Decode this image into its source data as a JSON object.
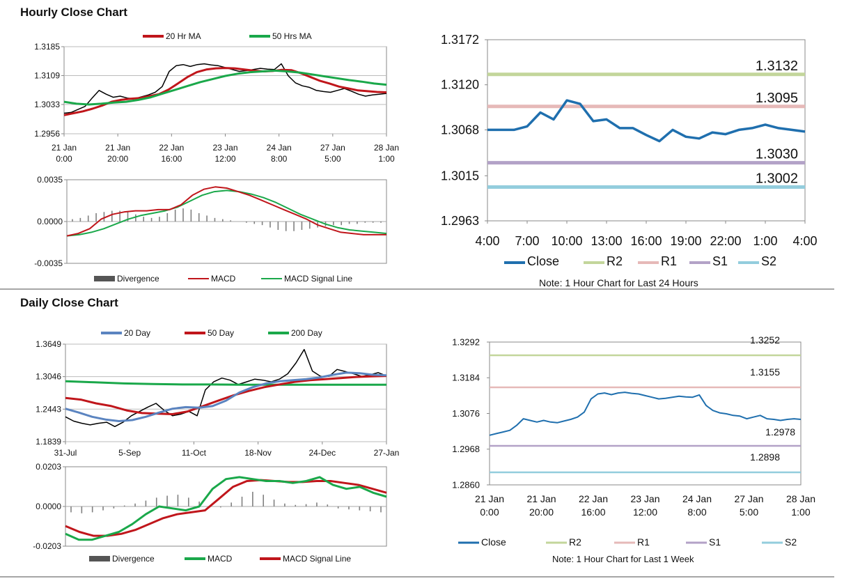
{
  "titles": {
    "hourly": "Hourly Close Chart",
    "daily": "Daily Close Chart"
  },
  "notes": {
    "hourly": "Note: 1 Hour Chart for Last 24 Hours",
    "daily": "Note: 1 Hour Chart for Last 1 Week"
  },
  "colors": {
    "price": "#000000",
    "ma_short": "#c0161b",
    "ma_long": "#1aa84a",
    "ma_20day": "#5b84c0",
    "ma_200": "#1aa84a",
    "close": "#1f6fae",
    "r2": "#c3d69b",
    "r1": "#e6b9b8",
    "s1": "#b3a2c7",
    "s2": "#93cddd",
    "divergence": "#808080"
  },
  "chart_data": [
    {
      "id": "hourly_price",
      "type": "line",
      "title": "",
      "legend": [
        "20 Hr MA",
        "50 Hrs MA"
      ],
      "y_ticks": [
        "1.3185",
        "1.3109",
        "1.3033",
        "1.2956"
      ],
      "ylim": [
        1.2956,
        1.3185
      ],
      "x_ticks": [
        [
          "21 Jan",
          "0:00"
        ],
        [
          "21 Jan",
          "20:00"
        ],
        [
          "22 Jan",
          "16:00"
        ],
        [
          "23 Jan",
          "12:00"
        ],
        [
          "24 Jan",
          "8:00"
        ],
        [
          "27 Jan",
          "5:00"
        ],
        [
          "28 Jan",
          "1:00"
        ]
      ],
      "series": [
        {
          "name": "Price",
          "values": [
            1.301,
            1.3012,
            1.302,
            1.3028,
            1.305,
            1.307,
            1.306,
            1.3052,
            1.3055,
            1.305,
            1.3048,
            1.3053,
            1.3058,
            1.3065,
            1.308,
            1.312,
            1.3135,
            1.3138,
            1.3133,
            1.3138,
            1.314,
            1.3137,
            1.3135,
            1.313,
            1.3125,
            1.312,
            1.3122,
            1.3125,
            1.3128,
            1.3126,
            1.3125,
            1.314,
            1.3108,
            1.309,
            1.3082,
            1.3078,
            1.307,
            1.3067,
            1.3065,
            1.307,
            1.3075,
            1.3068,
            1.306,
            1.3055,
            1.3058,
            1.306,
            1.3062
          ]
        },
        {
          "name": "20 Hr MA",
          "values": [
            1.3005,
            1.301,
            1.3015,
            1.3022,
            1.303,
            1.304,
            1.3045,
            1.3048,
            1.305,
            1.3055,
            1.306,
            1.3072,
            1.3088,
            1.3105,
            1.3118,
            1.3125,
            1.3128,
            1.3129,
            1.3128,
            1.3125,
            1.3122,
            1.312,
            1.3121,
            1.3124,
            1.3123,
            1.3115,
            1.3105,
            1.3095,
            1.3088,
            1.308,
            1.3075,
            1.307,
            1.3068,
            1.3066,
            1.3065
          ]
        },
        {
          "name": "50 Hrs MA",
          "values": [
            1.304,
            1.3035,
            1.3033,
            1.3035,
            1.3038,
            1.304,
            1.3045,
            1.3052,
            1.3062,
            1.3072,
            1.3082,
            1.3092,
            1.31,
            1.3108,
            1.3114,
            1.3118,
            1.312,
            1.3122,
            1.312,
            1.3117,
            1.3112,
            1.3107,
            1.3102,
            1.3097,
            1.3093,
            1.3088,
            1.3085
          ]
        }
      ]
    },
    {
      "id": "hourly_macd",
      "type": "line",
      "title": "",
      "legend": [
        "Divergence",
        "MACD",
        "MACD Signal Line"
      ],
      "y_ticks": [
        "0.0035",
        "0.0000",
        "-0.0035"
      ],
      "ylim": [
        -0.0035,
        0.0035
      ],
      "series": [
        {
          "name": "MACD",
          "values": [
            -0.0012,
            -0.001,
            -0.0006,
            0.0002,
            0.0006,
            0.0008,
            0.0009,
            0.0009,
            0.001,
            0.001,
            0.0014,
            0.0022,
            0.0027,
            0.0029,
            0.0028,
            0.0025,
            0.0022,
            0.0018,
            0.0014,
            0.001,
            0.0006,
            0.0002,
            -0.0003,
            -0.0006,
            -0.0009,
            -0.001,
            -0.0011,
            -0.0011,
            -0.0011
          ]
        },
        {
          "name": "MACD Signal Line",
          "values": [
            -0.0012,
            -0.0011,
            -0.0009,
            -0.0006,
            -0.0002,
            0.0002,
            0.0005,
            0.0007,
            0.0009,
            0.0012,
            0.0017,
            0.0022,
            0.0025,
            0.0026,
            0.0025,
            0.0023,
            0.002,
            0.0016,
            0.0011,
            0.0006,
            0.0002,
            -0.0002,
            -0.0005,
            -0.0007,
            -0.0008,
            -0.0009,
            -0.001
          ]
        },
        {
          "name": "Divergence",
          "values": [
            0.0002,
            0.0003,
            0.0005,
            0.0007,
            0.0008,
            0.0009,
            0.0009,
            0.0008,
            0.0006,
            0.0004,
            0.0003,
            0.0004,
            0.0007,
            0.001,
            0.0011,
            0.001,
            0.0007,
            0.0005,
            0.0003,
            0.0002,
            0.0001,
            0.0,
            -0.0001,
            -0.0002,
            -0.0003,
            -0.0005,
            -0.0007,
            -0.0008,
            -0.0008,
            -0.0007,
            -0.0006,
            -0.0005,
            -0.0004,
            -0.0003,
            -0.0003,
            -0.0002,
            -0.0002,
            -0.0001,
            -0.0001,
            -0.0001
          ]
        }
      ]
    },
    {
      "id": "hourly_close_24h",
      "type": "line",
      "title": "",
      "y_ticks": [
        "1.3172",
        "1.3120",
        "1.3068",
        "1.3015",
        "1.2963"
      ],
      "ylim": [
        1.2963,
        1.3172
      ],
      "x_ticks": [
        "4:00",
        "7:00",
        "10:00",
        "13:00",
        "16:00",
        "19:00",
        "22:00",
        "1:00",
        "4:00"
      ],
      "legend": [
        "Close",
        "R2",
        "R1",
        "S1",
        "S2"
      ],
      "levels": {
        "R2": "1.3132",
        "R1": "1.3095",
        "S1": "1.3030",
        "S2": "1.3002"
      },
      "series": [
        {
          "name": "Close",
          "values": [
            1.3068,
            1.3068,
            1.3068,
            1.3072,
            1.3088,
            1.308,
            1.3102,
            1.3098,
            1.3078,
            1.308,
            1.307,
            1.307,
            1.3062,
            1.3055,
            1.3068,
            1.306,
            1.3058,
            1.3065,
            1.3063,
            1.3068,
            1.307,
            1.3074,
            1.307,
            1.3068,
            1.3066
          ]
        }
      ]
    },
    {
      "id": "daily_price",
      "type": "line",
      "title": "",
      "legend": [
        "20 Day",
        "50 Day",
        "200 Day"
      ],
      "y_ticks": [
        "1.3649",
        "1.3046",
        "1.2443",
        "1.1839"
      ],
      "ylim": [
        1.1839,
        1.3649
      ],
      "x_ticks": [
        "31-Jul",
        "5-Sep",
        "11-Oct",
        "18-Nov",
        "24-Dec",
        "27-Jan"
      ],
      "series": [
        {
          "name": "Price",
          "values": [
            1.23,
            1.222,
            1.218,
            1.215,
            1.218,
            1.22,
            1.212,
            1.22,
            1.232,
            1.24,
            1.248,
            1.255,
            1.242,
            1.232,
            1.235,
            1.24,
            1.232,
            1.28,
            1.295,
            1.302,
            1.298,
            1.29,
            1.295,
            1.3,
            1.298,
            1.295,
            1.3,
            1.31,
            1.33,
            1.355,
            1.315,
            1.305,
            1.305,
            1.318,
            1.314,
            1.31,
            1.305,
            1.308,
            1.312,
            1.306
          ]
        },
        {
          "name": "20 Day",
          "values": [
            1.245,
            1.238,
            1.23,
            1.225,
            1.222,
            1.224,
            1.23,
            1.238,
            1.245,
            1.248,
            1.247,
            1.25,
            1.26,
            1.275,
            1.285,
            1.292,
            1.296,
            1.298,
            1.3,
            1.303,
            1.308,
            1.312,
            1.311,
            1.308,
            1.307
          ]
        },
        {
          "name": "50 Day",
          "values": [
            1.265,
            1.262,
            1.255,
            1.25,
            1.242,
            1.237,
            1.236,
            1.235,
            1.24,
            1.25,
            1.26,
            1.27,
            1.278,
            1.285,
            1.29,
            1.295,
            1.298,
            1.3,
            1.302,
            1.304,
            1.305,
            1.306
          ]
        },
        {
          "name": "200 Day",
          "values": [
            1.296,
            1.294,
            1.292,
            1.291,
            1.29,
            1.29,
            1.2895,
            1.2895,
            1.2895,
            1.2895,
            1.2895,
            1.2895
          ]
        }
      ]
    },
    {
      "id": "daily_macd",
      "type": "line",
      "title": "",
      "legend": [
        "Divergence",
        "MACD",
        "MACD Signal Line"
      ],
      "y_ticks": [
        "0.0203",
        "0.0000",
        "-0.0203"
      ],
      "ylim": [
        -0.0203,
        0.0203
      ],
      "series": [
        {
          "name": "MACD",
          "values": [
            -0.014,
            -0.017,
            -0.017,
            -0.015,
            -0.013,
            -0.009,
            -0.004,
            0.0,
            -0.001,
            -0.002,
            0.0,
            0.009,
            0.014,
            0.015,
            0.014,
            0.013,
            0.013,
            0.012,
            0.013,
            0.015,
            0.011,
            0.009,
            0.01,
            0.007,
            0.005
          ]
        },
        {
          "name": "MACD Signal Line",
          "values": [
            -0.01,
            -0.013,
            -0.015,
            -0.015,
            -0.014,
            -0.012,
            -0.009,
            -0.006,
            -0.004,
            -0.003,
            -0.002,
            0.004,
            0.01,
            0.013,
            0.0135,
            0.013,
            0.0125,
            0.0125,
            0.013,
            0.013,
            0.012,
            0.011,
            0.009,
            0.007
          ]
        },
        {
          "name": "Divergence",
          "values": [
            -0.003,
            -0.0035,
            -0.003,
            -0.002,
            -0.001,
            0.0005,
            0.0015,
            0.003,
            0.0045,
            0.0055,
            0.006,
            0.0045,
            0.0025,
            0.0005,
            -0.0005,
            0.002,
            0.005,
            0.0075,
            0.006,
            0.0035,
            0.0015,
            0.0008,
            0.0012,
            0.002,
            0.001,
            -0.001,
            -0.0015,
            -0.002,
            -0.0025,
            -0.003
          ]
        }
      ]
    },
    {
      "id": "daily_close_week",
      "type": "line",
      "title": "",
      "y_ticks": [
        "1.3292",
        "1.3184",
        "1.3076",
        "1.2968",
        "1.2860"
      ],
      "ylim": [
        1.286,
        1.3292
      ],
      "x_ticks": [
        [
          "21 Jan",
          "0:00"
        ],
        [
          "21 Jan",
          "20:00"
        ],
        [
          "22 Jan",
          "16:00"
        ],
        [
          "23 Jan",
          "12:00"
        ],
        [
          "24 Jan",
          "8:00"
        ],
        [
          "27 Jan",
          "5:00"
        ],
        [
          "28 Jan",
          "1:00"
        ]
      ],
      "legend": [
        "Close",
        "R2",
        "R1",
        "S1",
        "S2"
      ],
      "levels": {
        "R2": "1.3252",
        "R1": "1.3155",
        "S1": "1.2978",
        "S2": "1.2898"
      },
      "series": [
        {
          "name": "Close",
          "values": [
            1.301,
            1.3015,
            1.302,
            1.3025,
            1.304,
            1.306,
            1.3055,
            1.305,
            1.3055,
            1.305,
            1.3048,
            1.3053,
            1.3058,
            1.3065,
            1.308,
            1.312,
            1.3135,
            1.3138,
            1.3133,
            1.3138,
            1.314,
            1.3137,
            1.3135,
            1.313,
            1.3125,
            1.312,
            1.3122,
            1.3125,
            1.3128,
            1.3126,
            1.3125,
            1.3132,
            1.31,
            1.3085,
            1.3078,
            1.3075,
            1.307,
            1.3068,
            1.306,
            1.3065,
            1.307,
            1.306,
            1.3058,
            1.3055,
            1.3058,
            1.306,
            1.3058
          ]
        }
      ]
    }
  ]
}
